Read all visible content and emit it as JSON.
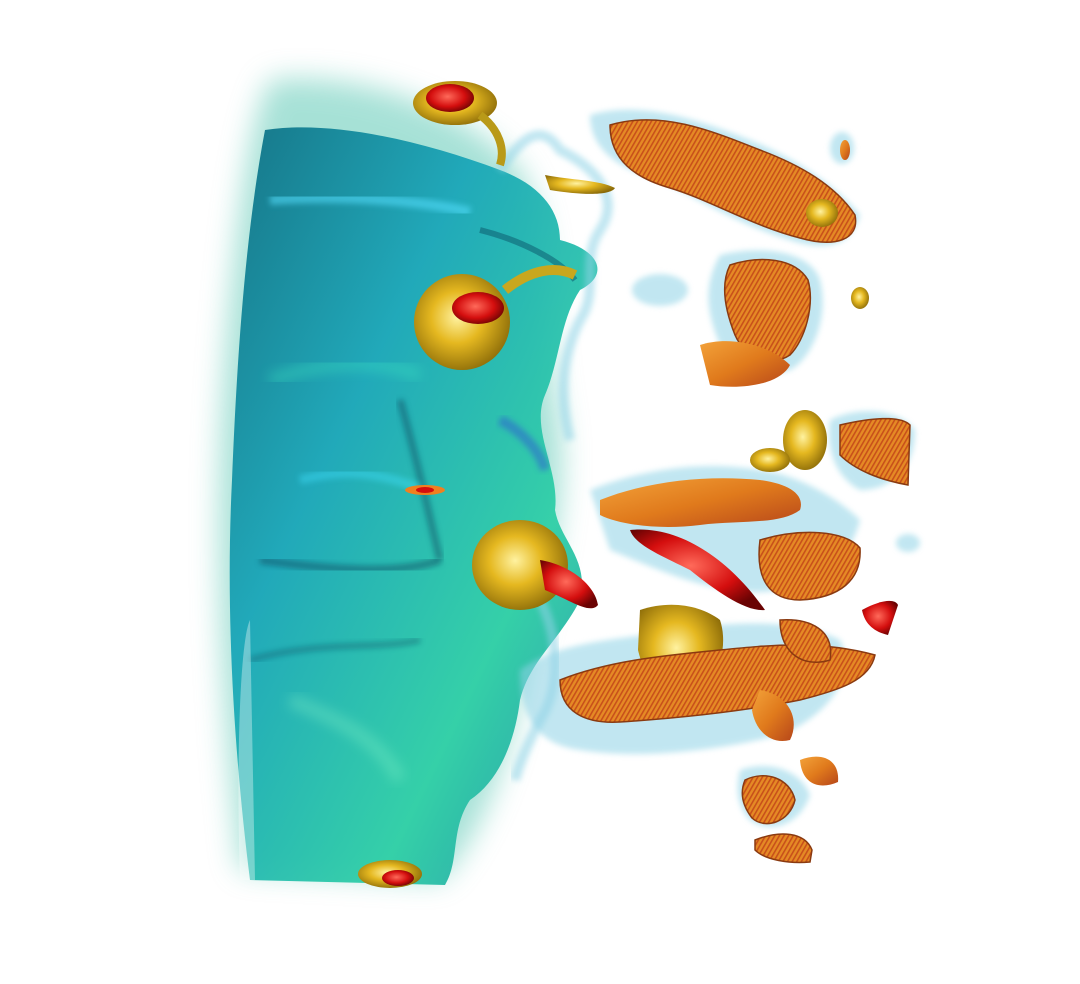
{
  "scene": {
    "background": "#ffffff",
    "palette": {
      "teal_deep": "#0b5f73",
      "teal_mid": "#1a9fb6",
      "teal_light": "#27c4c9",
      "green_light": "#3fd6a4",
      "cyan_glass": "#8fd3e6",
      "gold": "#d8b21e",
      "orange": "#e07a1c",
      "orange_dark": "#c8501a",
      "red_core": "#d40e0e"
    }
  }
}
